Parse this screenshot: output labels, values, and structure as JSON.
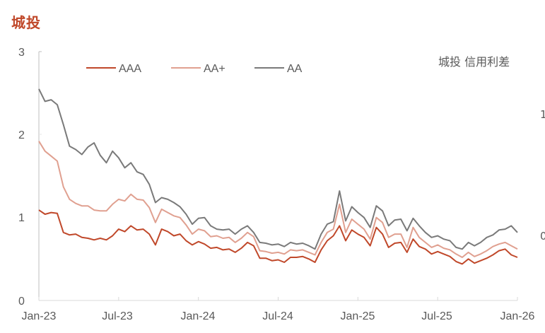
{
  "header": {
    "title": "城投",
    "chart_subtitle": "城投 信用利差",
    "right_axis_partial_ticks": [
      "1",
      "0"
    ]
  },
  "colors": {
    "title": "#c0482a",
    "AAA": "#c0482a",
    "AA+": "#e0a090",
    "AA": "#7a7a7a",
    "axis": "#d9d9d9",
    "text": "#595959"
  },
  "chart_data": {
    "type": "line",
    "title": "城投 信用利差",
    "xlabel": "",
    "ylabel": "",
    "ylim": [
      0,
      3
    ],
    "yticks": [
      0,
      1,
      2,
      3
    ],
    "xticks": [
      "Jan-23",
      "Jul-23",
      "Jan-24",
      "Jul-24",
      "Jan-25",
      "Jul-25",
      "Jan-26"
    ],
    "grid": false,
    "legend_position": "top",
    "x_range": [
      "Jan-23",
      "Jan-26"
    ],
    "n_points": 79,
    "series": [
      {
        "name": "AAA",
        "color": "#c0482a",
        "values": [
          1.09,
          1.04,
          1.06,
          1.05,
          0.82,
          0.79,
          0.8,
          0.76,
          0.75,
          0.73,
          0.75,
          0.73,
          0.78,
          0.86,
          0.83,
          0.9,
          0.85,
          0.86,
          0.8,
          0.67,
          0.86,
          0.83,
          0.78,
          0.8,
          0.72,
          0.67,
          0.71,
          0.68,
          0.63,
          0.64,
          0.61,
          0.62,
          0.58,
          0.63,
          0.7,
          0.66,
          0.51,
          0.51,
          0.48,
          0.49,
          0.46,
          0.52,
          0.52,
          0.53,
          0.5,
          0.46,
          0.61,
          0.72,
          0.78,
          0.9,
          0.72,
          0.85,
          0.8,
          0.76,
          0.66,
          0.88,
          0.8,
          0.64,
          0.69,
          0.7,
          0.58,
          0.74,
          0.65,
          0.62,
          0.56,
          0.59,
          0.56,
          0.53,
          0.47,
          0.44,
          0.5,
          0.45,
          0.48,
          0.51,
          0.55,
          0.6,
          0.62,
          0.55,
          0.52
        ]
      },
      {
        "name": "AA+",
        "color": "#e0a090",
        "values": [
          1.92,
          1.8,
          1.74,
          1.68,
          1.37,
          1.22,
          1.17,
          1.14,
          1.14,
          1.09,
          1.08,
          1.08,
          1.16,
          1.22,
          1.2,
          1.28,
          1.22,
          1.21,
          1.12,
          0.94,
          1.1,
          1.06,
          1.02,
          1.0,
          0.91,
          0.8,
          0.86,
          0.84,
          0.77,
          0.78,
          0.75,
          0.76,
          0.7,
          0.75,
          0.82,
          0.77,
          0.6,
          0.59,
          0.57,
          0.58,
          0.56,
          0.61,
          0.6,
          0.61,
          0.58,
          0.55,
          0.7,
          0.82,
          0.86,
          1.16,
          0.82,
          0.98,
          0.92,
          0.86,
          0.74,
          1.0,
          0.94,
          0.76,
          0.8,
          0.8,
          0.64,
          0.88,
          0.76,
          0.7,
          0.64,
          0.67,
          0.63,
          0.61,
          0.56,
          0.52,
          0.58,
          0.53,
          0.56,
          0.6,
          0.65,
          0.68,
          0.7,
          0.66,
          0.62
        ]
      },
      {
        "name": "AA",
        "color": "#7a7a7a",
        "values": [
          2.55,
          2.4,
          2.42,
          2.36,
          2.12,
          1.86,
          1.82,
          1.76,
          1.85,
          1.9,
          1.75,
          1.66,
          1.8,
          1.72,
          1.6,
          1.66,
          1.55,
          1.52,
          1.4,
          1.18,
          1.24,
          1.22,
          1.18,
          1.13,
          1.04,
          0.92,
          0.99,
          1.0,
          0.9,
          0.86,
          0.85,
          0.86,
          0.8,
          0.86,
          0.9,
          0.82,
          0.7,
          0.69,
          0.67,
          0.68,
          0.65,
          0.7,
          0.68,
          0.69,
          0.66,
          0.62,
          0.8,
          0.92,
          0.95,
          1.32,
          0.96,
          1.13,
          1.06,
          1.0,
          0.88,
          1.14,
          1.08,
          0.9,
          0.97,
          0.98,
          0.84,
          0.99,
          0.9,
          0.82,
          0.76,
          0.78,
          0.74,
          0.72,
          0.64,
          0.62,
          0.7,
          0.66,
          0.7,
          0.76,
          0.79,
          0.85,
          0.86,
          0.9,
          0.82
        ]
      }
    ],
    "annotations": [
      "城投 信用利差"
    ]
  },
  "legend": {
    "items": [
      {
        "label": "AAA"
      },
      {
        "label": "AA+"
      },
      {
        "label": "AA"
      }
    ]
  },
  "axes": {
    "y_ticks": [
      "0",
      "1",
      "2",
      "3"
    ],
    "x_ticks": [
      "Jan-23",
      "Jul-23",
      "Jan-24",
      "Jul-24",
      "Jan-25",
      "Jul-25",
      "Jan-26"
    ]
  }
}
